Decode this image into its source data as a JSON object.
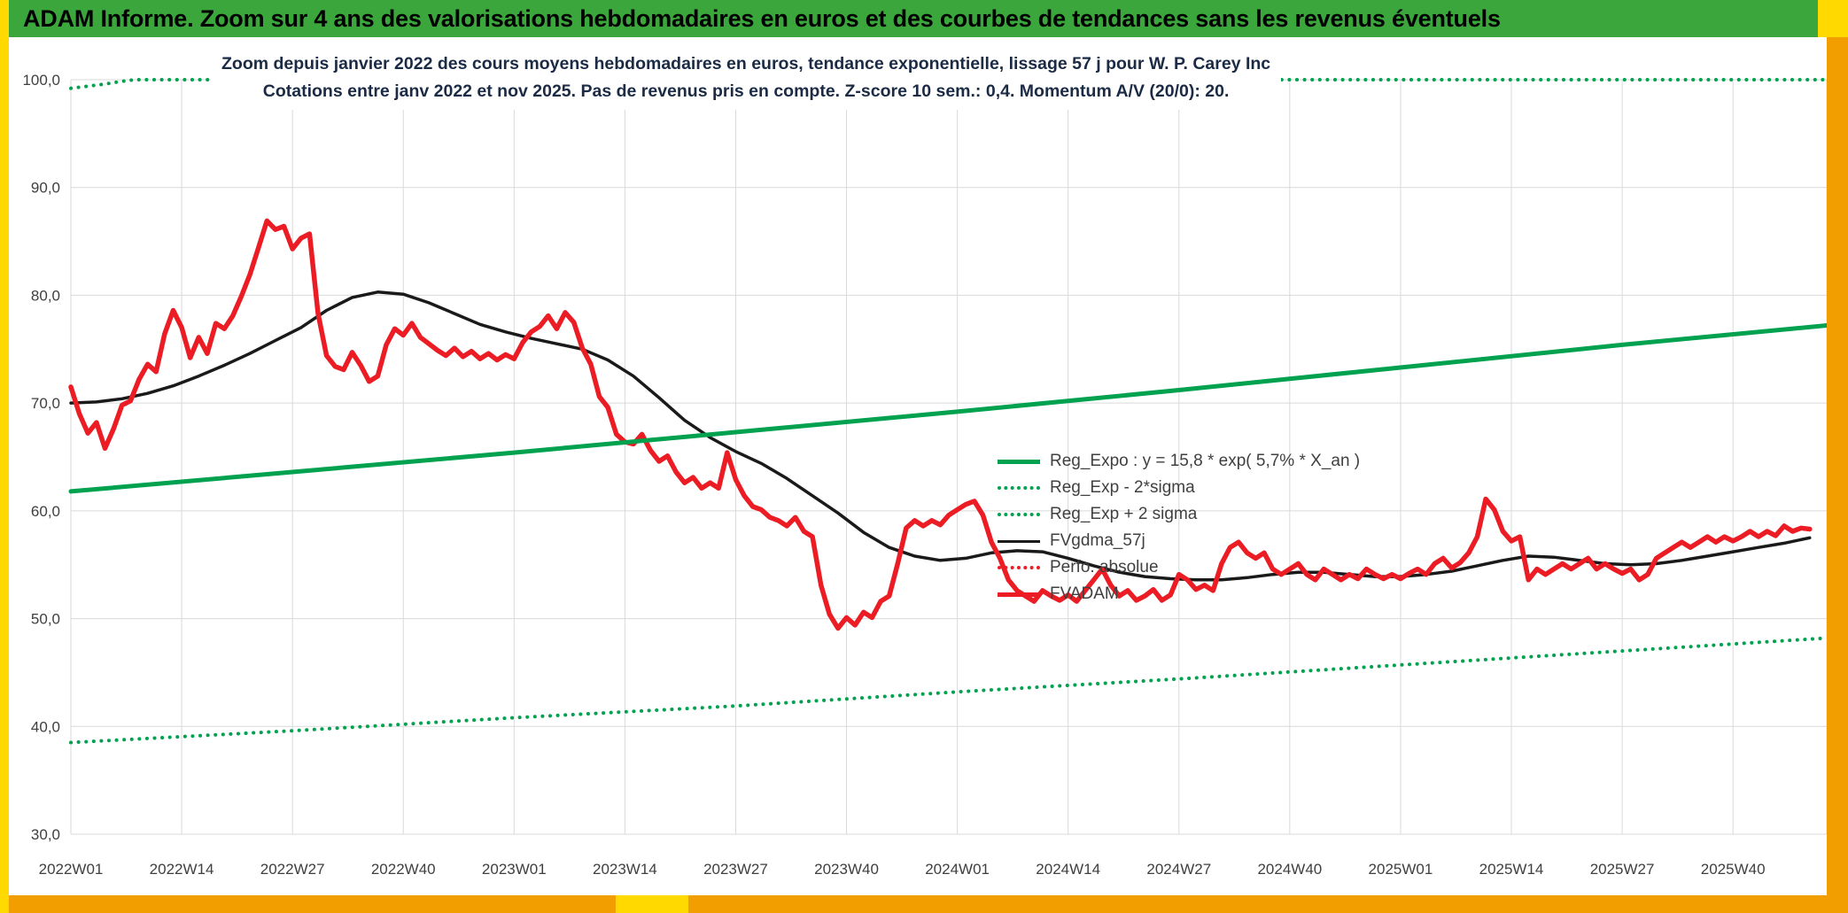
{
  "page": {
    "header_title": "ADAM Informe. Zoom sur 4 ans des valorisations hebdomadaires en euros et des courbes de tendances sans les revenus éventuels",
    "colors": {
      "header_bg": "#3aa63c",
      "frame_yellow": "#ffd900",
      "frame_orange": "#f39e00",
      "title_color": "#1b2b45",
      "line_green": "#00a14f",
      "line_red": "#ec1c24",
      "line_black": "#1a1a1a"
    }
  },
  "chart_data": {
    "type": "line",
    "title_line1": "Zoom depuis janvier 2022 des cours moyens hebdomadaires en euros, tendance exponentielle, lissage 57 j pour W. P. Carey Inc",
    "title_line2": "Cotations entre janv 2022 et nov 2025. Pas de revenus pris en compte. Z-score 10 sem.: 0,4. Momentum A/V (20/0): 20.",
    "x_axis": {
      "unit": "ISO week",
      "tick_labels": [
        "2022W01",
        "2022W14",
        "2022W27",
        "2022W40",
        "2023W01",
        "2023W14",
        "2023W27",
        "2023W40",
        "2024W01",
        "2024W14",
        "2024W27",
        "2024W40",
        "2025W01",
        "2025W14",
        "2025W27",
        "2025W40"
      ],
      "tick_weeks": [
        0,
        13,
        26,
        39,
        52,
        65,
        78,
        91,
        104,
        117,
        130,
        143,
        156,
        169,
        182,
        195
      ],
      "week_span": [
        0,
        206
      ]
    },
    "y_axis": {
      "tick_labels": [
        "100,0",
        "90,0",
        "80,0",
        "70,0",
        "60,0",
        "50,0",
        "40,0",
        "30,0"
      ],
      "tick_values": [
        100,
        90,
        80,
        70,
        60,
        50,
        40,
        30
      ],
      "range": [
        30,
        100
      ],
      "grid": true
    },
    "legend": {
      "position": "center-right-inside",
      "entries": [
        {
          "label": "Reg_Expo : y = 15,8 * exp( 5,7% *  X_an )",
          "color": "#00a14f",
          "dash": false,
          "sample_width": 5
        },
        {
          "label": "Reg_Exp - 2*sigma",
          "color": "#00a14f",
          "dash": true,
          "sample_width": 4
        },
        {
          "label": "Reg_Exp + 2 sigma",
          "color": "#00a14f",
          "dash": true,
          "sample_width": 4
        },
        {
          "label": "FVgdma_57j",
          "color": "#1a1a1a",
          "dash": false,
          "sample_width": 3
        },
        {
          "label": "Perfo. absolue",
          "color": "#ec1c24",
          "dash": true,
          "sample_width": 4
        },
        {
          "label": "FVADAM",
          "color": "#ec1c24",
          "dash": false,
          "sample_width": 5
        }
      ]
    },
    "series": [
      {
        "id": "reg_exp_minus_2sigma",
        "name": "Reg_Exp - 2*sigma",
        "color": "#00a14f",
        "width": 4,
        "dash": "0.1 8.5",
        "points": [
          [
            0,
            38.5
          ],
          [
            26,
            39.6
          ],
          [
            52,
            40.8
          ],
          [
            78,
            41.9
          ],
          [
            104,
            43.2
          ],
          [
            130,
            44.4
          ],
          [
            156,
            45.7
          ],
          [
            182,
            47.0
          ],
          [
            206,
            48.2
          ]
        ]
      },
      {
        "id": "reg_exp_plus_2sigma",
        "name": "Reg_Exp + 2 sigma",
        "color": "#00a14f",
        "width": 4,
        "dash": "0.1 8.5",
        "note": "rises above the y-axis maximum and is clamped at 100; hidden behind the white title box in the middle of the chart",
        "points": [
          [
            0,
            99.2
          ],
          [
            2,
            99.4
          ],
          [
            4,
            99.6
          ],
          [
            6,
            99.85
          ],
          [
            7.5,
            100
          ],
          [
            206,
            100
          ]
        ]
      },
      {
        "id": "fvgdma_57j",
        "name": "FVgdma_57j",
        "color": "#1a1a1a",
        "width": 3.5,
        "dash": null,
        "points": [
          [
            0,
            70.0
          ],
          [
            3,
            70.1
          ],
          [
            6,
            70.4
          ],
          [
            9,
            70.9
          ],
          [
            12,
            71.6
          ],
          [
            15,
            72.5
          ],
          [
            18,
            73.5
          ],
          [
            21,
            74.6
          ],
          [
            24,
            75.8
          ],
          [
            27,
            77.0
          ],
          [
            30,
            78.6
          ],
          [
            33,
            79.8
          ],
          [
            36,
            80.3
          ],
          [
            39,
            80.1
          ],
          [
            42,
            79.3
          ],
          [
            45,
            78.3
          ],
          [
            48,
            77.3
          ],
          [
            51,
            76.6
          ],
          [
            54,
            76.0
          ],
          [
            57,
            75.5
          ],
          [
            60,
            75.0
          ],
          [
            63,
            74.0
          ],
          [
            66,
            72.5
          ],
          [
            69,
            70.5
          ],
          [
            72,
            68.4
          ],
          [
            75,
            66.8
          ],
          [
            78,
            65.5
          ],
          [
            81,
            64.4
          ],
          [
            84,
            63.0
          ],
          [
            87,
            61.4
          ],
          [
            90,
            59.8
          ],
          [
            93,
            58.0
          ],
          [
            96,
            56.6
          ],
          [
            99,
            55.8
          ],
          [
            102,
            55.4
          ],
          [
            105,
            55.6
          ],
          [
            108,
            56.1
          ],
          [
            111,
            56.3
          ],
          [
            114,
            56.2
          ],
          [
            117,
            55.6
          ],
          [
            120,
            54.9
          ],
          [
            123,
            54.3
          ],
          [
            126,
            53.9
          ],
          [
            129,
            53.7
          ],
          [
            132,
            53.6
          ],
          [
            135,
            53.6
          ],
          [
            138,
            53.8
          ],
          [
            141,
            54.1
          ],
          [
            144,
            54.3
          ],
          [
            147,
            54.3
          ],
          [
            150,
            54.1
          ],
          [
            153,
            53.9
          ],
          [
            156,
            53.9
          ],
          [
            159,
            54.1
          ],
          [
            162,
            54.4
          ],
          [
            165,
            54.9
          ],
          [
            168,
            55.4
          ],
          [
            171,
            55.8
          ],
          [
            174,
            55.7
          ],
          [
            177,
            55.4
          ],
          [
            180,
            55.1
          ],
          [
            183,
            55.0
          ],
          [
            186,
            55.1
          ],
          [
            189,
            55.4
          ],
          [
            192,
            55.8
          ],
          [
            195,
            56.2
          ],
          [
            198,
            56.6
          ],
          [
            201,
            57.0
          ],
          [
            204,
            57.5
          ]
        ]
      },
      {
        "id": "perfo_absolue",
        "name": "Perfo. absolue",
        "color": "#ec1c24",
        "width": 3,
        "dash": "0.1 8.5",
        "note": "listed in legend but not visibly distinct in the plotted area (coincides with FVADAM)",
        "points": []
      },
      {
        "id": "fvadam",
        "name": "FVADAM",
        "color": "#ec1c24",
        "width": 5.5,
        "dash": null,
        "start_week": "2022W01",
        "values": [
          71.5,
          69.0,
          67.2,
          68.2,
          65.8,
          67.6,
          69.8,
          70.2,
          72.2,
          73.6,
          72.9,
          76.4,
          78.6,
          77.0,
          74.2,
          76.1,
          74.6,
          77.4,
          76.9,
          78.1,
          79.9,
          81.9,
          84.4,
          86.9,
          86.1,
          86.4,
          84.3,
          85.3,
          85.7,
          78.3,
          74.4,
          73.4,
          73.1,
          74.7,
          73.5,
          72.0,
          72.5,
          75.4,
          76.9,
          76.3,
          77.4,
          76.1,
          75.5,
          74.9,
          74.4,
          75.1,
          74.3,
          74.8,
          74.1,
          74.6,
          74.0,
          74.5,
          74.1,
          75.6,
          76.6,
          77.1,
          78.1,
          76.9,
          78.4,
          77.5,
          75.1,
          73.6,
          70.6,
          69.6,
          67.1,
          66.4,
          66.2,
          67.1,
          65.6,
          64.6,
          65.1,
          63.6,
          62.6,
          63.1,
          62.1,
          62.6,
          62.1,
          65.4,
          62.9,
          61.4,
          60.4,
          60.1,
          59.4,
          59.1,
          58.6,
          59.4,
          58.1,
          57.6,
          53.1,
          50.4,
          49.1,
          50.1,
          49.4,
          50.6,
          50.1,
          51.6,
          52.1,
          55.1,
          58.4,
          59.1,
          58.6,
          59.1,
          58.7,
          59.6,
          60.1,
          60.6,
          60.9,
          59.6,
          57.1,
          55.6,
          53.6,
          52.6,
          52.1,
          51.6,
          52.6,
          52.1,
          51.7,
          52.2,
          51.6,
          52.6,
          53.6,
          54.6,
          53.1,
          52.1,
          52.6,
          51.7,
          52.1,
          52.7,
          51.7,
          52.2,
          54.1,
          53.6,
          52.7,
          53.1,
          52.6,
          55.1,
          56.6,
          57.1,
          56.1,
          55.6,
          56.1,
          54.6,
          54.1,
          54.6,
          55.1,
          54.1,
          53.6,
          54.6,
          54.1,
          53.6,
          54.1,
          53.7,
          54.6,
          54.1,
          53.7,
          54.1,
          53.7,
          54.2,
          54.6,
          54.1,
          55.1,
          55.6,
          54.7,
          55.2,
          56.1,
          57.6,
          61.1,
          60.1,
          58.1,
          57.2,
          57.6,
          53.6,
          54.6,
          54.1,
          54.6,
          55.1,
          54.6,
          55.1,
          55.6,
          54.6,
          55.1,
          54.6,
          54.2,
          54.6,
          53.6,
          54.1,
          55.6,
          56.1,
          56.6,
          57.1,
          56.6,
          57.1,
          57.6,
          57.1,
          57.6,
          57.2,
          57.6,
          58.1,
          57.6,
          58.1,
          57.7,
          58.6,
          58.1,
          58.4,
          58.3
        ]
      },
      {
        "id": "reg_expo",
        "name": "Reg_Expo : y = 15,8 * exp( 5,7% *  X_an )",
        "color": "#00a14f",
        "width": 5,
        "dash": null,
        "points": [
          [
            0,
            61.8
          ],
          [
            26,
            63.6
          ],
          [
            52,
            65.4
          ],
          [
            78,
            67.3
          ],
          [
            104,
            69.2
          ],
          [
            130,
            71.2
          ],
          [
            156,
            73.3
          ],
          [
            182,
            75.4
          ],
          [
            206,
            77.2
          ]
        ]
      }
    ]
  }
}
